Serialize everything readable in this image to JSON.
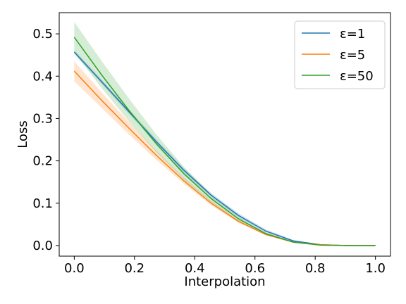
{
  "chart_data": {
    "type": "line",
    "xlabel": "Interpolation",
    "ylabel": "Loss",
    "xlim": [
      -0.05,
      1.05
    ],
    "ylim": [
      -0.025,
      0.55
    ],
    "xticks": [
      0.0,
      0.2,
      0.4,
      0.6,
      0.8,
      1.0
    ],
    "xtick_labels": [
      "0.0",
      "0.2",
      "0.4",
      "0.6",
      "0.8",
      "1.0"
    ],
    "yticks": [
      0.0,
      0.1,
      0.2,
      0.3,
      0.4,
      0.5
    ],
    "ytick_labels": [
      "0.0",
      "0.1",
      "0.2",
      "0.3",
      "0.4",
      "0.5"
    ],
    "grid": false,
    "legend_position": "top-right",
    "x": [
      0.0,
      0.0909,
      0.1818,
      0.2727,
      0.3636,
      0.4545,
      0.5455,
      0.6364,
      0.7273,
      0.8182,
      0.9091,
      1.0
    ],
    "series": [
      {
        "name": "ε=1",
        "color": "#1f77b4",
        "values": [
          0.457,
          0.387,
          0.316,
          0.245,
          0.178,
          0.119,
          0.071,
          0.034,
          0.011,
          0.002,
          0.0,
          0.0
        ],
        "lower": [
          0.452,
          0.382,
          0.311,
          0.24,
          0.173,
          0.114,
          0.066,
          0.03,
          0.009,
          0.001,
          0.0,
          0.0
        ],
        "upper": [
          0.462,
          0.392,
          0.321,
          0.25,
          0.183,
          0.124,
          0.076,
          0.038,
          0.013,
          0.003,
          0.0,
          0.0
        ]
      },
      {
        "name": "ε=5",
        "color": "#ff7f0e",
        "values": [
          0.412,
          0.343,
          0.277,
          0.213,
          0.153,
          0.1,
          0.057,
          0.026,
          0.008,
          0.002,
          0.0,
          0.0
        ],
        "lower": [
          0.388,
          0.325,
          0.262,
          0.202,
          0.146,
          0.095,
          0.054,
          0.024,
          0.007,
          0.001,
          0.0,
          0.0
        ],
        "upper": [
          0.435,
          0.362,
          0.292,
          0.224,
          0.161,
          0.106,
          0.061,
          0.029,
          0.01,
          0.003,
          0.0,
          0.0
        ]
      },
      {
        "name": "ε=50",
        "color": "#2ca02c",
        "values": [
          0.492,
          0.403,
          0.319,
          0.24,
          0.17,
          0.111,
          0.063,
          0.028,
          0.008,
          0.001,
          0.0,
          0.0
        ],
        "lower": [
          0.456,
          0.372,
          0.293,
          0.22,
          0.156,
          0.102,
          0.058,
          0.026,
          0.007,
          0.001,
          0.0,
          0.0
        ],
        "upper": [
          0.528,
          0.436,
          0.347,
          0.262,
          0.186,
          0.121,
          0.069,
          0.031,
          0.009,
          0.002,
          0.0,
          0.0
        ]
      }
    ]
  }
}
